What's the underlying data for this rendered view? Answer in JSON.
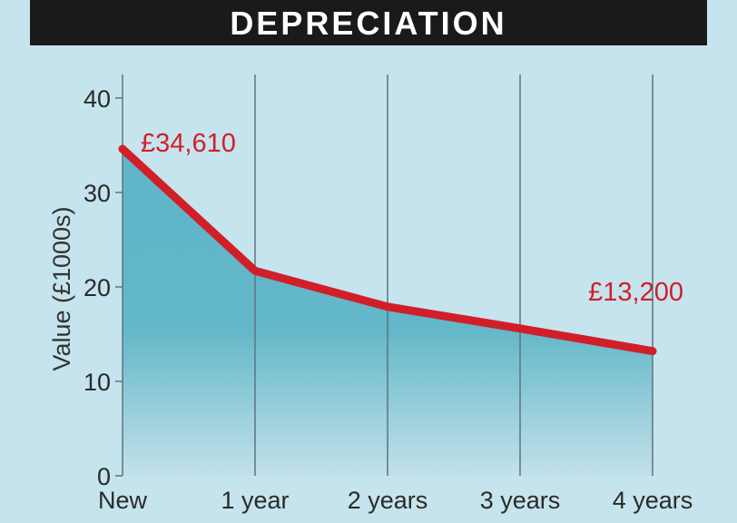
{
  "chart_data": {
    "type": "area",
    "title": "DEPRECIATION",
    "xlabel": "",
    "ylabel": "Value (£1000s)",
    "categories": [
      "New",
      "1 year",
      "2 years",
      "3 years",
      "4 years"
    ],
    "values": [
      34.61,
      21.7,
      17.9,
      15.6,
      13.2
    ],
    "ylim": [
      0,
      40
    ],
    "yticks": [
      "0",
      "10",
      "20",
      "30",
      "40"
    ],
    "annotations": [
      {
        "text": "£34,610",
        "category": "New"
      },
      {
        "text": "£13,200",
        "category": "4 years"
      }
    ],
    "grid": "vertical lines at categories",
    "colors": {
      "line": "#d11f2a",
      "fill": "#5fb6c8",
      "background": "#c6e4ed",
      "title_bar": "#1a1a1a"
    }
  }
}
